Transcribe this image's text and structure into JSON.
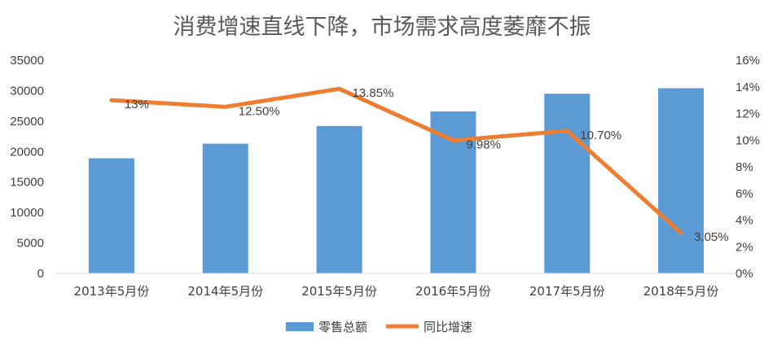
{
  "chart_data": {
    "type": "bar",
    "title": "消费增速直线下降，市场需求高度萎靡不振",
    "categories": [
      "2013年5月份",
      "2014年5月份",
      "2015年5月份",
      "2016年5月份",
      "2017年5月份",
      "2018年5月份"
    ],
    "series": [
      {
        "name": "零售总额",
        "type": "bar",
        "axis": "left",
        "color": "#5B9BD5",
        "values": [
          18900,
          21300,
          24200,
          26600,
          29500,
          30400
        ]
      },
      {
        "name": "同比增速",
        "type": "line",
        "axis": "right",
        "color": "#ED7D31",
        "values": [
          13.0,
          12.5,
          13.85,
          9.98,
          10.7,
          3.05
        ],
        "labels": [
          "13%",
          "12.50%",
          "13.85%",
          "9.98%",
          "10.70%",
          "3.05%"
        ]
      }
    ],
    "y_left": {
      "min": 0,
      "max": 35000,
      "ticks": [
        "0",
        "5000",
        "10000",
        "15000",
        "20000",
        "25000",
        "30000",
        "35000"
      ]
    },
    "y_right": {
      "min": 0,
      "max": 16,
      "ticks": [
        "0%",
        "2%",
        "4%",
        "6%",
        "8%",
        "10%",
        "12%",
        "14%",
        "16%"
      ]
    },
    "grid": false,
    "legend_position": "bottom"
  }
}
